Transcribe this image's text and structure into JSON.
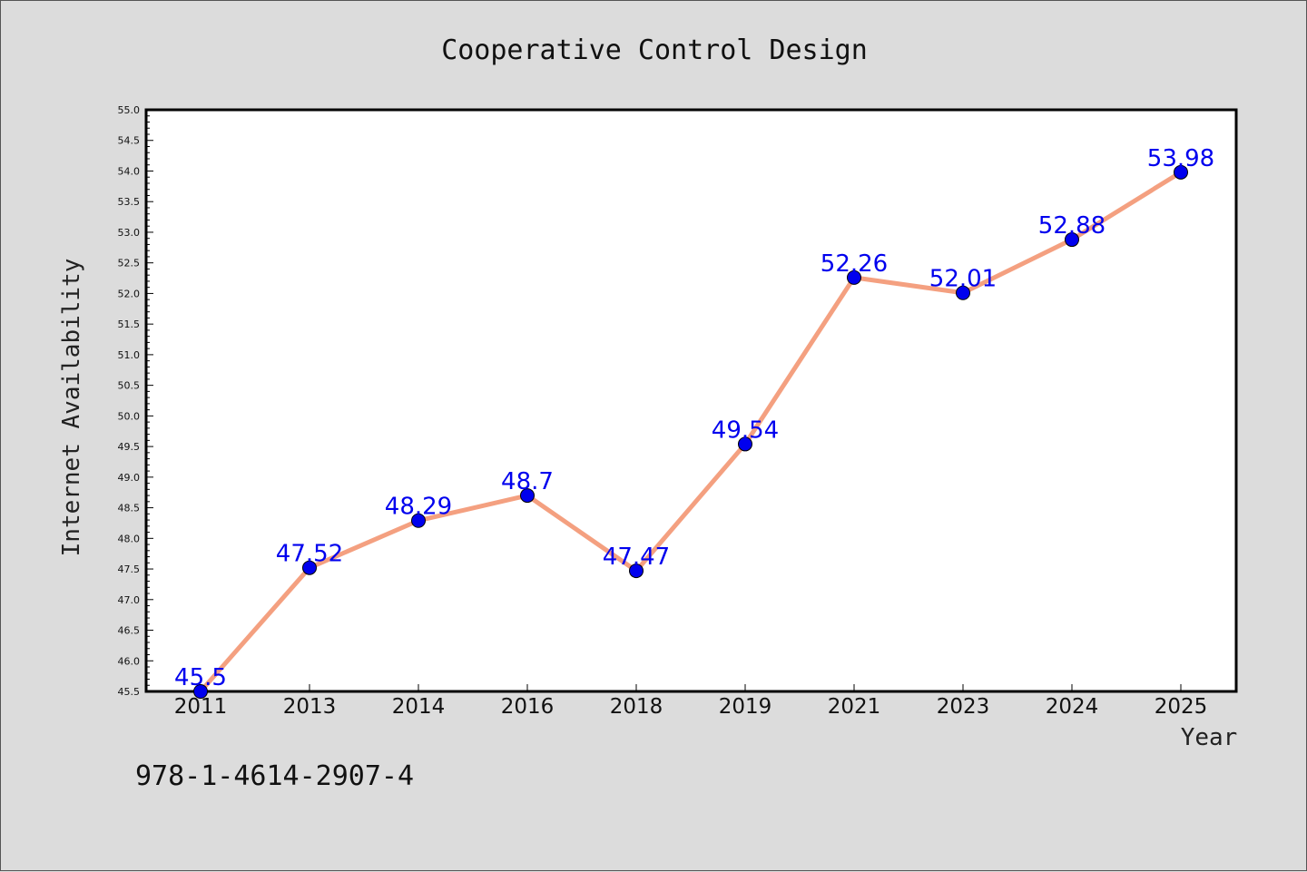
{
  "chart_data": {
    "type": "line",
    "title": "Cooperative Control Design",
    "xlabel": "Year",
    "ylabel": "Internet Availability",
    "categories": [
      "2011",
      "2013",
      "2014",
      "2016",
      "2018",
      "2019",
      "2021",
      "2023",
      "2024",
      "2025"
    ],
    "series": [
      {
        "values": [
          45.5,
          47.52,
          48.29,
          48.7,
          47.47,
          49.54,
          52.26,
          52.01,
          52.88,
          53.98
        ],
        "data_labels": [
          "45.5",
          "47.52",
          "48.29",
          "48.7",
          "47.47",
          "49.54",
          "52.26",
          "52.01",
          "52.88",
          "53.98"
        ],
        "line_color": "#f4a080",
        "marker_color": "#0000ee",
        "label_color": "#0000ee"
      }
    ],
    "ylim": [
      45.5,
      55.0
    ],
    "yticks": [
      "45.5",
      "46.0",
      "46.5",
      "47.0",
      "47.5",
      "48.0",
      "48.5",
      "49.0",
      "49.5",
      "50.0",
      "50.5",
      "51.0",
      "51.5",
      "52.0",
      "52.5",
      "53.0",
      "53.5",
      "54.0",
      "54.5",
      "55.0"
    ],
    "grid": false,
    "legend": "none"
  },
  "footnote": "978-1-4614-2907-4",
  "colors": {
    "background": "#dcdcdc",
    "plot_background": "#ffffff"
  }
}
